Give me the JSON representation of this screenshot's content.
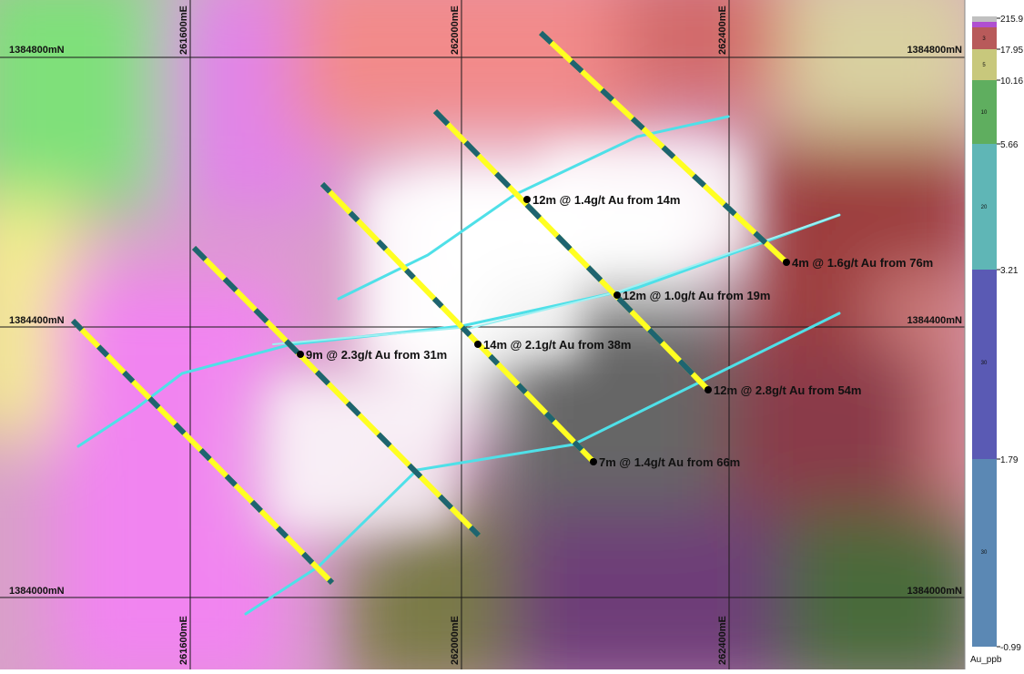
{
  "map": {
    "grid": {
      "eastings": [
        "261600mE",
        "262000mE",
        "262400mE"
      ],
      "northings": [
        "1384800mN",
        "1384400mN",
        "1384000mN"
      ]
    },
    "intercepts": [
      "12m @ 1.4g/t Au from 14m",
      "4m @ 1.6g/t Au from 76m",
      "12m @ 1.0g/t Au from 19m",
      "14m @ 2.1g/t Au from 38m",
      "9m @ 2.3g/t Au from 31m",
      "12m @ 2.8g/t Au from 54m",
      "7m @ 1.4g/t Au from 66m"
    ],
    "colors": {
      "pink": "#f184f0",
      "green": "#7fe07a",
      "yellow": "#f4f08a",
      "red": "#e46060",
      "darkred": "#9c3c3c",
      "purple": "#6e3e78",
      "olive": "#7a7a46",
      "grey": "#666666",
      "hole_yellow": "#ffff22",
      "hole_teal": "#1e6470",
      "trace_cyan": "#4fe0e8"
    }
  },
  "legend": {
    "title": "Au_ppb",
    "ticks": [
      "215.9",
      "17.95",
      "10.16",
      "5.66",
      "3.21",
      "1.79",
      "-0.99"
    ],
    "small_labels": [
      "3",
      "5",
      "10",
      "20",
      "30",
      "30"
    ],
    "colors": [
      "#c0c0c0",
      "#b04fd0",
      "#b85a5a",
      "#c8c87c",
      "#5fae5f",
      "#5fb6b6",
      "#5a5ab4",
      "#5b88b4"
    ]
  }
}
